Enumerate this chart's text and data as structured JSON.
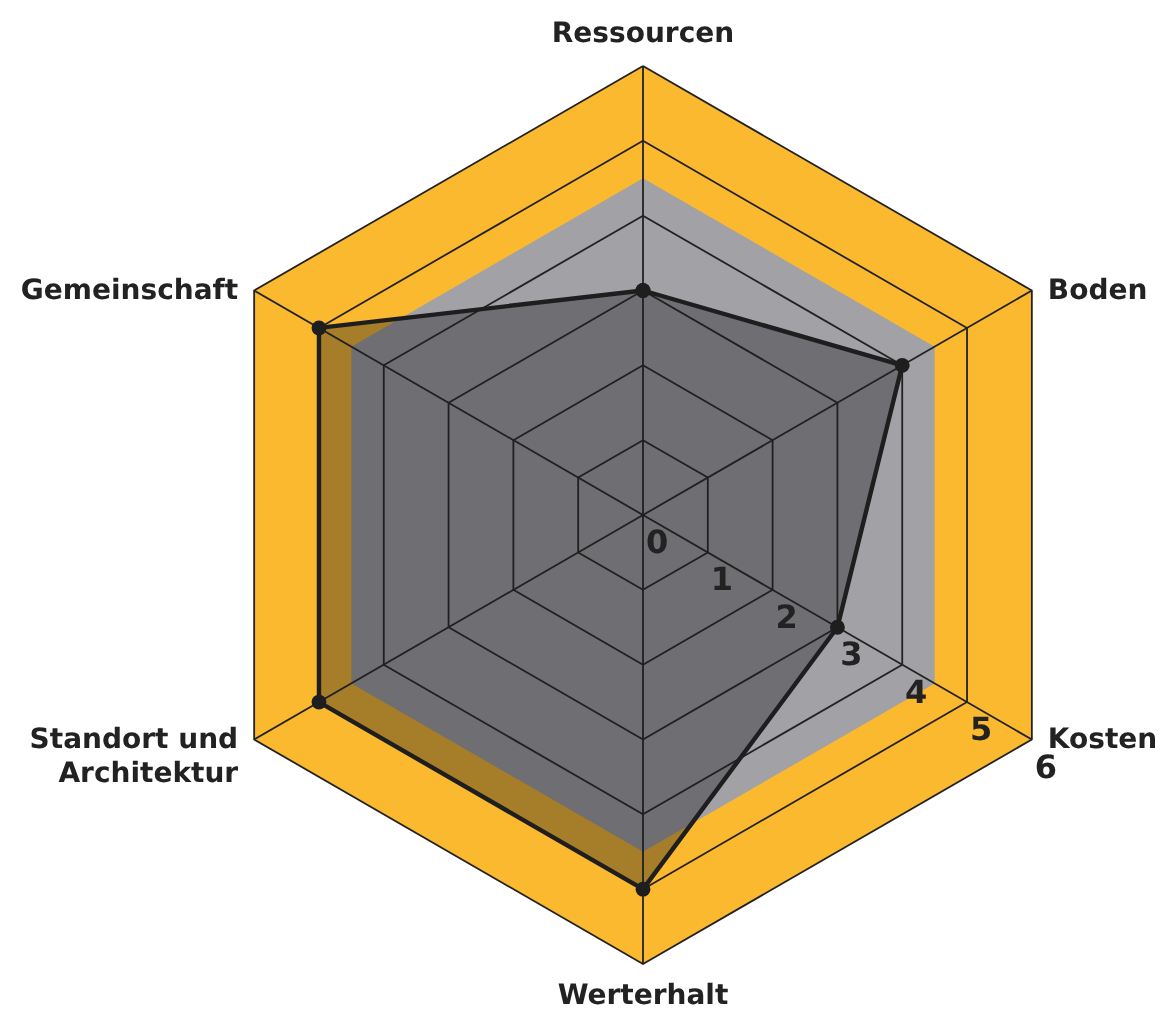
{
  "chart_data": {
    "type": "radar",
    "categories": [
      "Ressourcen",
      "Boden",
      "Kosten",
      "Werterhalt",
      "Standort und Architektur",
      "Gemeinschaft"
    ],
    "ylim": [
      0,
      6
    ],
    "yticks": [
      0,
      1,
      2,
      3,
      4,
      5,
      6
    ],
    "grid": true,
    "marker": "circle",
    "series": [
      {
        "color": "#1e1e1e",
        "values": [
          3,
          4,
          3,
          5,
          5,
          5
        ]
      }
    ]
  }
}
